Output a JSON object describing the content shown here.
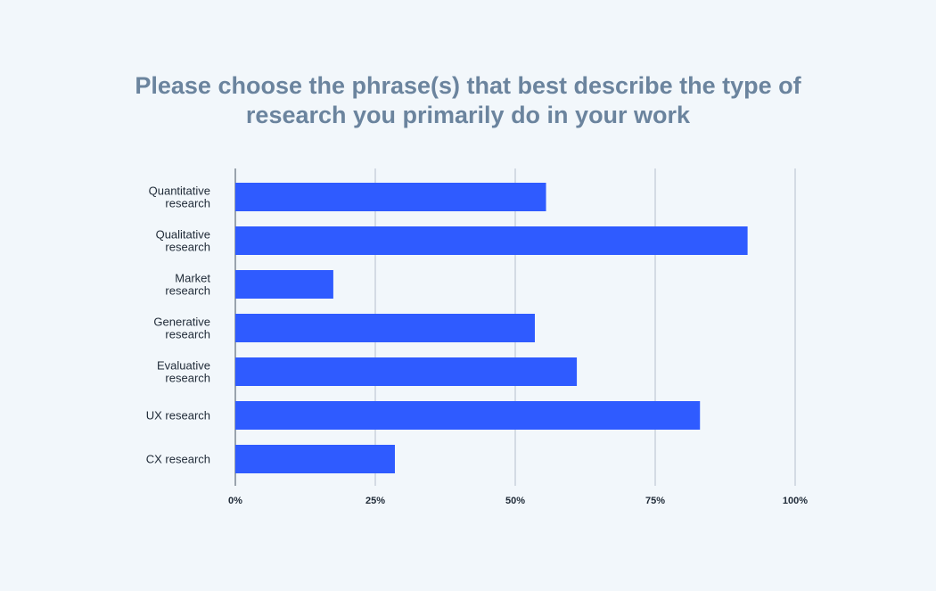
{
  "chart_data": {
    "type": "bar",
    "orientation": "horizontal",
    "title_lines": [
      "Please choose the phrase(s) that best describe the type of",
      "research you primarily do in your work"
    ],
    "categories": [
      [
        "Quantitative",
        "research"
      ],
      [
        "Qualitative",
        "research"
      ],
      [
        "Market",
        "research"
      ],
      [
        "Generative",
        "research"
      ],
      [
        "Evaluative",
        "research"
      ],
      [
        "UX research"
      ],
      [
        "CX research"
      ]
    ],
    "values": [
      55.5,
      91.5,
      17.5,
      53.5,
      61,
      83,
      28.5
    ],
    "xlim": [
      0,
      100
    ],
    "xticks": [
      "0%",
      "25%",
      "50%",
      "75%",
      "100%"
    ],
    "grid": true,
    "bar_color": "#2f5bff",
    "grid_color": "#c9d2dd",
    "axis_color": "#9aa3ad",
    "title_color": "#6b849e"
  }
}
